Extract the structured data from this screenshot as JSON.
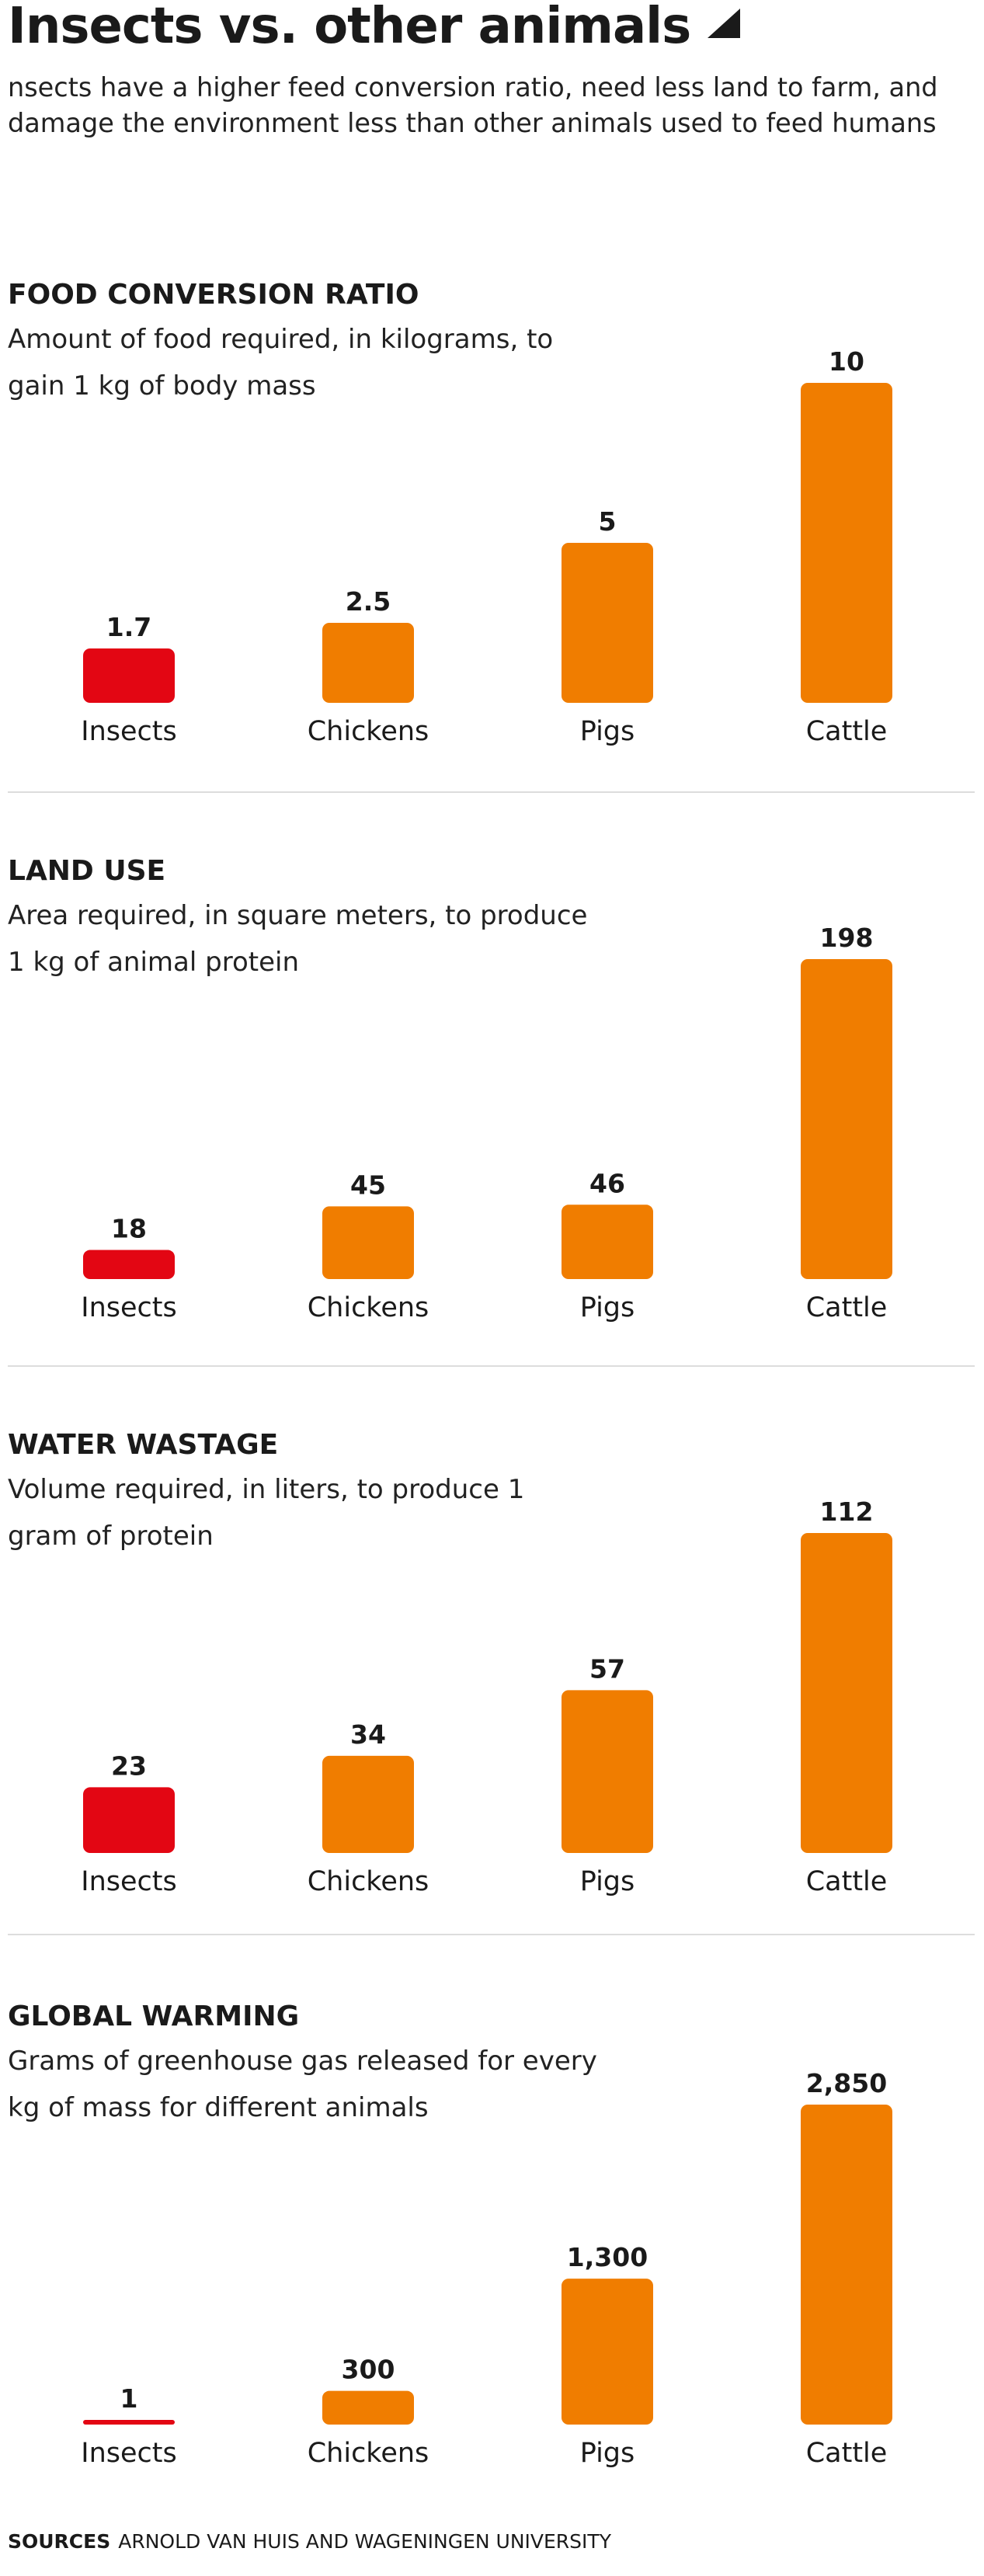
{
  "header": {
    "title": "Insects vs. other animals",
    "subtitle": "nsects have a higher feed conversion ratio, need less land to farm, and damage the environment less than other animals used to feed humans"
  },
  "colors": {
    "highlight": "#e30613",
    "bar": "#f07d00",
    "text": "#1a1a1a",
    "divider": "#dddddd"
  },
  "chart_data": [
    {
      "type": "bar",
      "title": "FOOD CONVERSION RATIO",
      "subtitle": "Amount of food required, in kilograms, to gain 1 kg of body mass",
      "categories": [
        "Insects",
        "Chickens",
        "Pigs",
        "Cattle"
      ],
      "values": [
        1.7,
        2.5,
        5,
        10
      ],
      "value_labels": [
        "1.7",
        "2.5",
        "5",
        "10"
      ],
      "highlight_index": 0
    },
    {
      "type": "bar",
      "title": "LAND USE",
      "subtitle": "Area required, in square meters, to produce 1 kg of animal protein",
      "categories": [
        "Insects",
        "Chickens",
        "Pigs",
        "Cattle"
      ],
      "values": [
        18,
        45,
        46,
        198
      ],
      "value_labels": [
        "18",
        "45",
        "46",
        "198"
      ],
      "highlight_index": 0
    },
    {
      "type": "bar",
      "title": "WATER WASTAGE",
      "subtitle": "Volume required, in liters, to produce 1 gram of protein",
      "categories": [
        "Insects",
        "Chickens",
        "Pigs",
        "Cattle"
      ],
      "values": [
        23,
        34,
        57,
        112
      ],
      "value_labels": [
        "23",
        "34",
        "57",
        "112"
      ],
      "highlight_index": 0
    },
    {
      "type": "bar",
      "title": "GLOBAL WARMING",
      "subtitle": "Grams of greenhouse gas released for every kg of mass for different animals",
      "categories": [
        "Insects",
        "Chickens",
        "Pigs",
        "Cattle"
      ],
      "values": [
        1,
        300,
        1300,
        2850
      ],
      "value_labels": [
        "1",
        "300",
        "1,300",
        "2,850"
      ],
      "highlight_index": 0
    }
  ],
  "footer": {
    "sources_label": "SOURCES",
    "sources_text": "ARNOLD VAN HUIS AND WAGENINGEN UNIVERSITY"
  }
}
